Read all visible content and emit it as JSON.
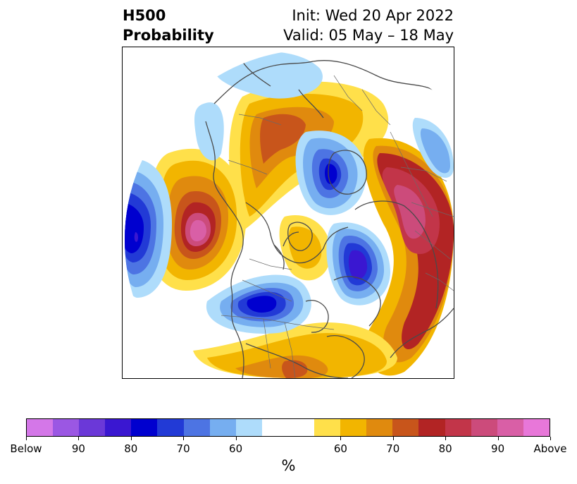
{
  "title": {
    "left_line1": "H500",
    "left_line2": "Probability",
    "right_line1": "Init: Wed 20 Apr 2022",
    "right_line2": "Valid: 05 May – 18 May"
  },
  "colorbar": {
    "units": "%",
    "colors": [
      "#d477e8",
      "#9b57e3",
      "#6b38d8",
      "#3a17d1",
      "#0000cf",
      "#223ad6",
      "#4d74e3",
      "#76aef0",
      "#aedcfb",
      "#ffffff",
      "#ffe04a",
      "#f2b500",
      "#e08a0e",
      "#c8551b",
      "#b22424",
      "#c23549",
      "#cc4b7b",
      "#d95fa6",
      "#e877d9"
    ],
    "tick_labels": [
      "Below",
      "90",
      "80",
      "70",
      "60",
      "60",
      "70",
      "80",
      "90",
      "Above"
    ]
  },
  "map": {
    "projection": "north-polar-stereographic",
    "features": [
      "coastlines",
      "country-borders",
      "state-province-borders"
    ]
  }
}
